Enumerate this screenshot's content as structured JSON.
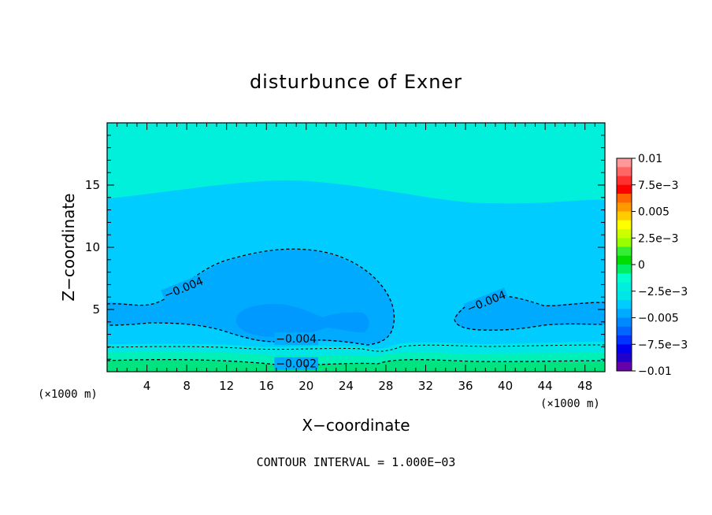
{
  "chart_data": {
    "type": "contour",
    "title": "disturbunce of Exner",
    "xlabel": "X−coordinate",
    "ylabel": "Z−coordinate",
    "x_unit_label": "(×1000 m)",
    "y_unit_label": "(×1000 m)",
    "footer": "CONTOUR INTERVAL = 1.000E−03",
    "xlim": [
      0,
      50
    ],
    "ylim": [
      0,
      20
    ],
    "x_ticks": [
      4,
      8,
      12,
      16,
      20,
      24,
      28,
      32,
      36,
      40,
      44,
      48
    ],
    "y_ticks": [
      5,
      10,
      15
    ],
    "contour_labels": [
      {
        "text": "−0.004",
        "x": 7.8,
        "z": 6.5,
        "angle": -22
      },
      {
        "text": "−0.004",
        "x": 19,
        "z": 2.4,
        "angle": 0
      },
      {
        "text": "−0.004",
        "x": 38.2,
        "z": 5.4,
        "angle": -22
      },
      {
        "text": "−0.002",
        "x": 19,
        "z": 0.4,
        "angle": 0
      }
    ],
    "colorbar": {
      "levels": [
        {
          "value": 0.01,
          "label": "0.01"
        },
        {
          "value": 0.0075,
          "label": "7.5e−3"
        },
        {
          "value": 0.005,
          "label": "0.005"
        },
        {
          "value": 0.0025,
          "label": "2.5e−3"
        },
        {
          "value": 0,
          "label": "0"
        },
        {
          "value": -0.0025,
          "label": "−2.5e−3"
        },
        {
          "value": -0.005,
          "label": "−0.005"
        },
        {
          "value": -0.0075,
          "label": "−7.5e−3"
        },
        {
          "value": -0.01,
          "label": "−0.01"
        }
      ],
      "colors_top_to_bottom": [
        "#ff9999",
        "#ff6666",
        "#ff3030",
        "#ff0000",
        "#ff6600",
        "#ff9900",
        "#ffcc00",
        "#ffff00",
        "#ccff00",
        "#99ff00",
        "#33ee33",
        "#00dd00",
        "#00ee66",
        "#00ffcc",
        "#00eedd",
        "#00e5e5",
        "#00ccff",
        "#00aaff",
        "#0088ff",
        "#0066ff",
        "#0033ff",
        "#0000ee",
        "#2200cc",
        "#6600aa"
      ]
    },
    "fill_colors": {
      "upper": "#00f0dc",
      "main": "#00ccff",
      "low": "#00aaff",
      "core": "#0099ff",
      "band_a": "#00e5e5",
      "band_b": "#00f0b8",
      "band_c": "#00e37f"
    }
  }
}
